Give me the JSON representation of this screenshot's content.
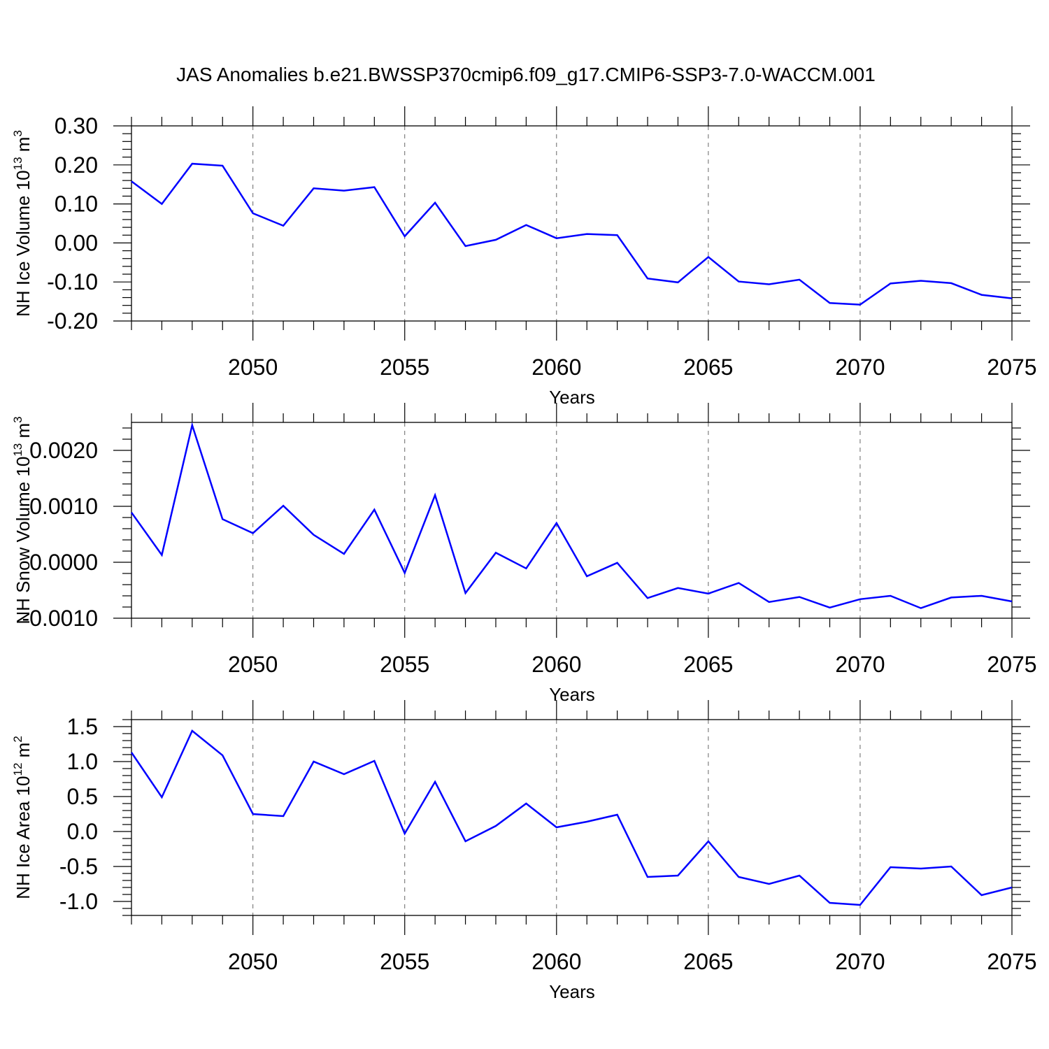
{
  "title": "JAS Anomalies b.e21.BWSSP370cmip6.f09_g17.CMIP6-SSP3-7.0-WACCM.001",
  "colors": {
    "line": "#0000ff",
    "axis": "#000000",
    "grid": "#666666"
  },
  "chart_data": [
    {
      "type": "line",
      "ylabel": "NH Ice Volume 10",
      "ylabel_exp": "13",
      "ylabel_unit": " m",
      "ylabel_unit_exp": "3",
      "xlabel": "Years",
      "xlim": [
        2046,
        2075
      ],
      "ylim": [
        -0.2,
        0.3
      ],
      "yticks": [
        -0.2,
        -0.1,
        0.0,
        0.1,
        0.2,
        0.3
      ],
      "yticklabels": [
        "-0.20",
        "-0.10",
        "0.00",
        "0.10",
        "0.20",
        "0.30"
      ],
      "xticks": [
        2050,
        2055,
        2060,
        2065,
        2070,
        2075
      ],
      "xticklabels": [
        "2050",
        "2055",
        "2060",
        "2065",
        "2070",
        "2075"
      ],
      "grid_x": [
        2050,
        2055,
        2060,
        2065,
        2070
      ],
      "x": [
        2046,
        2047,
        2048,
        2049,
        2050,
        2051,
        2052,
        2053,
        2054,
        2055,
        2056,
        2057,
        2058,
        2059,
        2060,
        2061,
        2062,
        2063,
        2064,
        2065,
        2066,
        2067,
        2068,
        2069,
        2070,
        2071,
        2072,
        2073,
        2074,
        2075
      ],
      "values": [
        0.158,
        0.1,
        0.203,
        0.198,
        0.076,
        0.044,
        0.14,
        0.134,
        0.143,
        0.017,
        0.103,
        -0.008,
        0.008,
        0.046,
        0.012,
        0.023,
        0.02,
        -0.091,
        -0.101,
        -0.036,
        -0.099,
        -0.106,
        -0.094,
        -0.154,
        -0.158,
        -0.104,
        -0.097,
        -0.103,
        -0.133,
        -0.142
      ]
    },
    {
      "type": "line",
      "ylabel": "NH Snow Volume 10",
      "ylabel_exp": "13",
      "ylabel_unit": " m",
      "ylabel_unit_exp": "3",
      "xlabel": "Years",
      "xlim": [
        2046,
        2075
      ],
      "ylim": [
        -0.001,
        0.0025
      ],
      "yticks": [
        -0.001,
        0.0,
        0.001,
        0.002
      ],
      "yticklabels": [
        "-0.0010",
        "0.0000",
        "0.0010",
        "0.0020"
      ],
      "xticks": [
        2050,
        2055,
        2060,
        2065,
        2070,
        2075
      ],
      "xticklabels": [
        "2050",
        "2055",
        "2060",
        "2065",
        "2070",
        "2075"
      ],
      "grid_x": [
        2050,
        2055,
        2060,
        2065,
        2070
      ],
      "x": [
        2046,
        2047,
        2048,
        2049,
        2050,
        2051,
        2052,
        2053,
        2054,
        2055,
        2056,
        2057,
        2058,
        2059,
        2060,
        2061,
        2062,
        2063,
        2064,
        2065,
        2066,
        2067,
        2068,
        2069,
        2070,
        2071,
        2072,
        2073,
        2074,
        2075
      ],
      "values": [
        0.00089,
        0.00013,
        0.00245,
        0.00077,
        0.00052,
        0.00101,
        0.00049,
        0.00015,
        0.00094,
        -0.00019,
        0.0012,
        -0.00055,
        0.00017,
        -0.00011,
        0.0007,
        -0.00025,
        -1e-05,
        -0.00064,
        -0.00046,
        -0.00056,
        -0.00037,
        -0.00071,
        -0.00062,
        -0.00081,
        -0.00066,
        -0.0006,
        -0.00082,
        -0.00063,
        -0.0006,
        -0.0007
      ]
    },
    {
      "type": "line",
      "ylabel": "NH Ice Area 10",
      "ylabel_exp": "12",
      "ylabel_unit": " m",
      "ylabel_unit_exp": "2",
      "xlabel": "Years",
      "xlim": [
        2046,
        2075
      ],
      "ylim": [
        -1.2,
        1.6
      ],
      "yticks": [
        -1.0,
        -0.5,
        0.0,
        0.5,
        1.0,
        1.5
      ],
      "yticklabels": [
        "-1.0",
        "-0.5",
        "0.0",
        "0.5",
        "1.0",
        "1.5"
      ],
      "xticks": [
        2050,
        2055,
        2060,
        2065,
        2070,
        2075
      ],
      "xticklabels": [
        "2050",
        "2055",
        "2060",
        "2065",
        "2070",
        "2075"
      ],
      "grid_x": [
        2050,
        2055,
        2060,
        2065,
        2070
      ],
      "x": [
        2046,
        2047,
        2048,
        2049,
        2050,
        2051,
        2052,
        2053,
        2054,
        2055,
        2056,
        2057,
        2058,
        2059,
        2060,
        2061,
        2062,
        2063,
        2064,
        2065,
        2066,
        2067,
        2068,
        2069,
        2070,
        2071,
        2072,
        2073,
        2074,
        2075
      ],
      "values": [
        1.13,
        0.49,
        1.44,
        1.09,
        0.25,
        0.22,
        1.0,
        0.82,
        1.01,
        -0.03,
        0.71,
        -0.14,
        0.08,
        0.4,
        0.06,
        0.14,
        0.24,
        -0.65,
        -0.63,
        -0.14,
        -0.65,
        -0.75,
        -0.63,
        -1.02,
        -1.05,
        -0.51,
        -0.53,
        -0.5,
        -0.91,
        -0.8
      ]
    }
  ]
}
